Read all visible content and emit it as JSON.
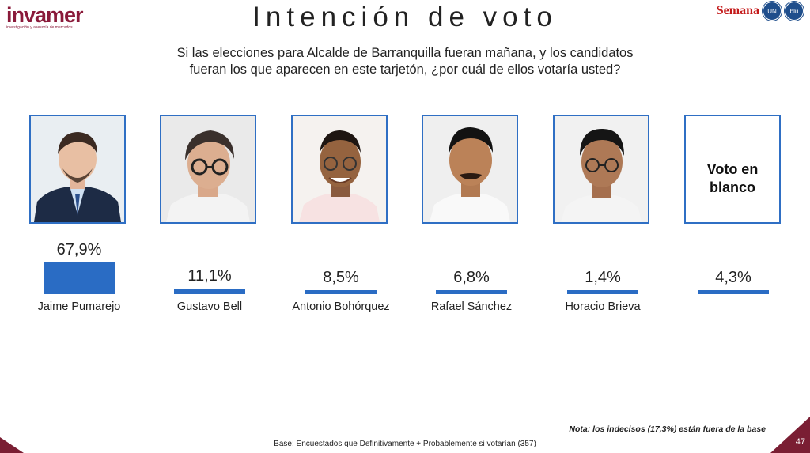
{
  "logo": {
    "name": "invamer",
    "tagline": "investigación y asesoría de mercados"
  },
  "title": "Intención de voto",
  "brands": {
    "semana": "Semana",
    "badge1": "UN",
    "badge2": "blu"
  },
  "question": {
    "line1": "Si las elecciones para Alcalde de Barranquilla fueran mañana, y los candidatos",
    "line2": "fueran los que aparecen en este tarjetón, ¿por cuál de ellos votaría usted?"
  },
  "blank_box_text": {
    "line1": "Voto en",
    "line2": "blanco"
  },
  "chart_data": {
    "type": "bar",
    "categories": [
      "Jaime Pumarejo",
      "Gustavo Bell",
      "Antonio Bohórquez",
      "Rafael Sánchez",
      "Horacio Brieva",
      "Voto en blanco"
    ],
    "values": [
      67.9,
      11.1,
      8.5,
      6.8,
      1.4,
      4.3
    ],
    "value_labels": [
      "67,9%",
      "11,1%",
      "8,5%",
      "6,8%",
      "1,4%",
      "4,3%"
    ],
    "name_labels": [
      "Jaime Pumarejo",
      "Gustavo Bell",
      "Antonio Bohórquez",
      "Rafael Sánchez",
      "Horacio Brieva",
      ""
    ],
    "bar_color": "#2a6cc4",
    "unit": "%"
  },
  "footer": {
    "nota": "Nota: los indecisos (17,3%) están fuera de la base",
    "base": "Base: Encuestados que Definitivamente + Probablemente si votarían (357)",
    "page": "47"
  },
  "colors": {
    "accent": "#2a6cc4",
    "brand": "#7a1e33"
  }
}
